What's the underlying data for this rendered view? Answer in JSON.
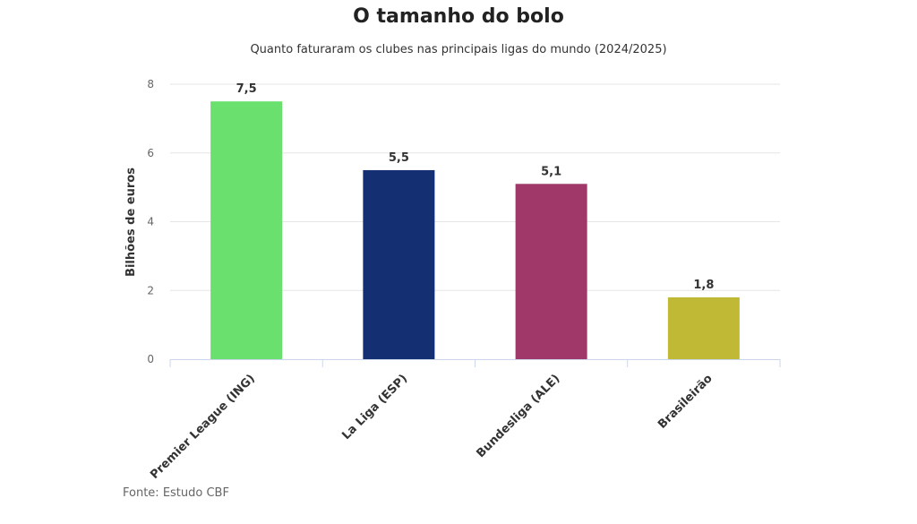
{
  "chart_data": {
    "type": "bar",
    "title": "O tamanho do bolo",
    "subtitle": "Quanto faturaram os clubes nas principais ligas do mundo (2024/2025)",
    "ylabel": "Bilhões de euros",
    "xlabel": "",
    "ylim": [
      0,
      8
    ],
    "yticks": [
      0,
      2,
      4,
      6,
      8
    ],
    "grid": true,
    "categories": [
      "Premier League (ING)",
      "La Liga (ESP)",
      "Bundesliga (ALE)",
      "Brasileirão"
    ],
    "values": [
      7.5,
      5.5,
      5.1,
      1.8
    ],
    "value_labels": [
      "7,5",
      "5,5",
      "5,1",
      "1,8"
    ],
    "colors": [
      "#6ae06f",
      "#142f72",
      "#a0386a",
      "#c0b936"
    ]
  },
  "source": "Fonte: Estudo CBF"
}
